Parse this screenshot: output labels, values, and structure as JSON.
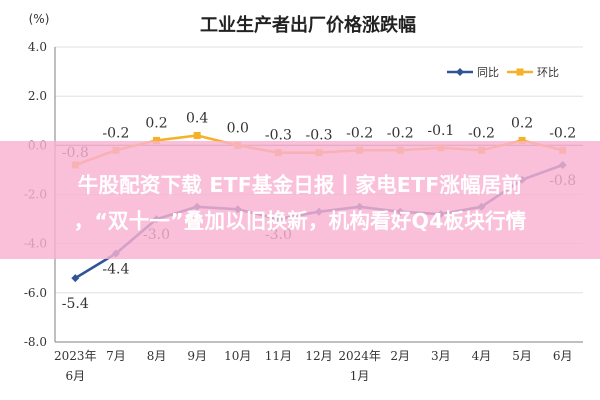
{
  "chart_data": {
    "type": "line",
    "title": "工业生产者出厂价格涨跌幅",
    "ylabel": "(%)",
    "ylim": [
      -8.0,
      4.0
    ],
    "yticks": [
      "4.0",
      "2.0",
      "0.0",
      "-2.0",
      "-4.0",
      "-6.0",
      "-8.0"
    ],
    "categories": [
      "2023年6月",
      "7月",
      "8月",
      "9月",
      "10月",
      "11月",
      "12月",
      "2024年1月",
      "2月",
      "3月",
      "4月",
      "5月",
      "6月"
    ],
    "x_tick_labels": [
      [
        "2023年",
        "6月"
      ],
      [
        "7月"
      ],
      [
        "8月"
      ],
      [
        "9月"
      ],
      [
        "10月"
      ],
      [
        "11月"
      ],
      [
        "12月"
      ],
      [
        "2024年",
        "1月"
      ],
      [
        "2月"
      ],
      [
        "3月"
      ],
      [
        "4月"
      ],
      [
        "5月"
      ],
      [
        "6月"
      ]
    ],
    "legend_position": "top-right",
    "grid": "horizontal",
    "series": [
      {
        "name": "同比",
        "color": "#2f5597",
        "values": [
          -5.4,
          -4.4,
          -3.0,
          -2.5,
          -2.6,
          -3.0,
          -2.7,
          -2.5,
          -2.7,
          -2.8,
          -2.5,
          -1.4,
          -0.8
        ],
        "labels": [
          "-5.4",
          "-4.4",
          "-3.0",
          "",
          "",
          "-3.0",
          "",
          "",
          "",
          "",
          "",
          "",
          "-0.8"
        ]
      },
      {
        "name": "环比",
        "color": "#f5b229",
        "values": [
          -0.8,
          -0.2,
          0.2,
          0.4,
          0.0,
          -0.3,
          -0.3,
          -0.2,
          -0.2,
          -0.1,
          -0.2,
          0.2,
          -0.2
        ],
        "labels": [
          "-0.8",
          "-0.2",
          "0.2",
          "0.4",
          "0.0",
          "-0.3",
          "-0.3",
          "-0.2",
          "-0.2",
          "-0.1",
          "-0.2",
          "0.2",
          "-0.2"
        ]
      }
    ]
  },
  "banner": {
    "line1": "牛股配资下载 ETF基金日报丨家电ETF涨幅居前",
    "line2": "，“双十一”叠加以旧换新，机构看好Q4板块行情"
  }
}
